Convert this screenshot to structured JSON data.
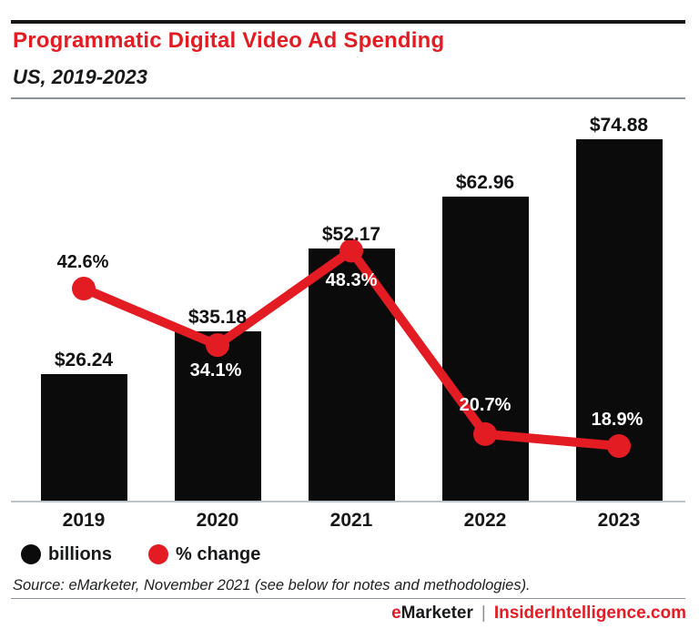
{
  "header": {
    "title": "Programmatic Digital Video Ad Spending",
    "subtitle": "US, 2019-2023"
  },
  "colors": {
    "accent_red": "#e31b22",
    "bar_black": "#0b0b0c",
    "white_label": "#ffffff",
    "dark_label": "#111214"
  },
  "chart_data": {
    "type": "combo-bar-line",
    "categories": [
      "2019",
      "2020",
      "2021",
      "2022",
      "2023"
    ],
    "series": [
      {
        "name": "billions",
        "type": "bar",
        "color": "#0b0b0c",
        "values": [
          26.24,
          35.18,
          52.17,
          62.96,
          74.88
        ],
        "labels": [
          "$26.24",
          "$35.18",
          "$52.17",
          "$62.96",
          "$74.88"
        ]
      },
      {
        "name": "% change",
        "type": "line",
        "color": "#e31b22",
        "values": [
          42.6,
          34.1,
          48.3,
          20.7,
          18.9
        ],
        "labels": [
          "42.6%",
          "34.1%",
          "48.3%",
          "20.7%",
          "18.9%"
        ]
      }
    ],
    "ylim_bar": [
      0,
      80
    ],
    "ylim_line": [
      0,
      60
    ],
    "grid": false,
    "legend_position": "bottom-left"
  },
  "legend": {
    "items": [
      {
        "label": "billions",
        "color": "#0b0b0c"
      },
      {
        "label": "% change",
        "color": "#e31b22"
      }
    ]
  },
  "source": "Source: eMarketer, November 2021 (see below for notes and methodologies).",
  "footer": {
    "brand_first_letter": "e",
    "brand_rest": "Marketer",
    "separator": "|",
    "site": "InsiderIntelligence.com"
  }
}
